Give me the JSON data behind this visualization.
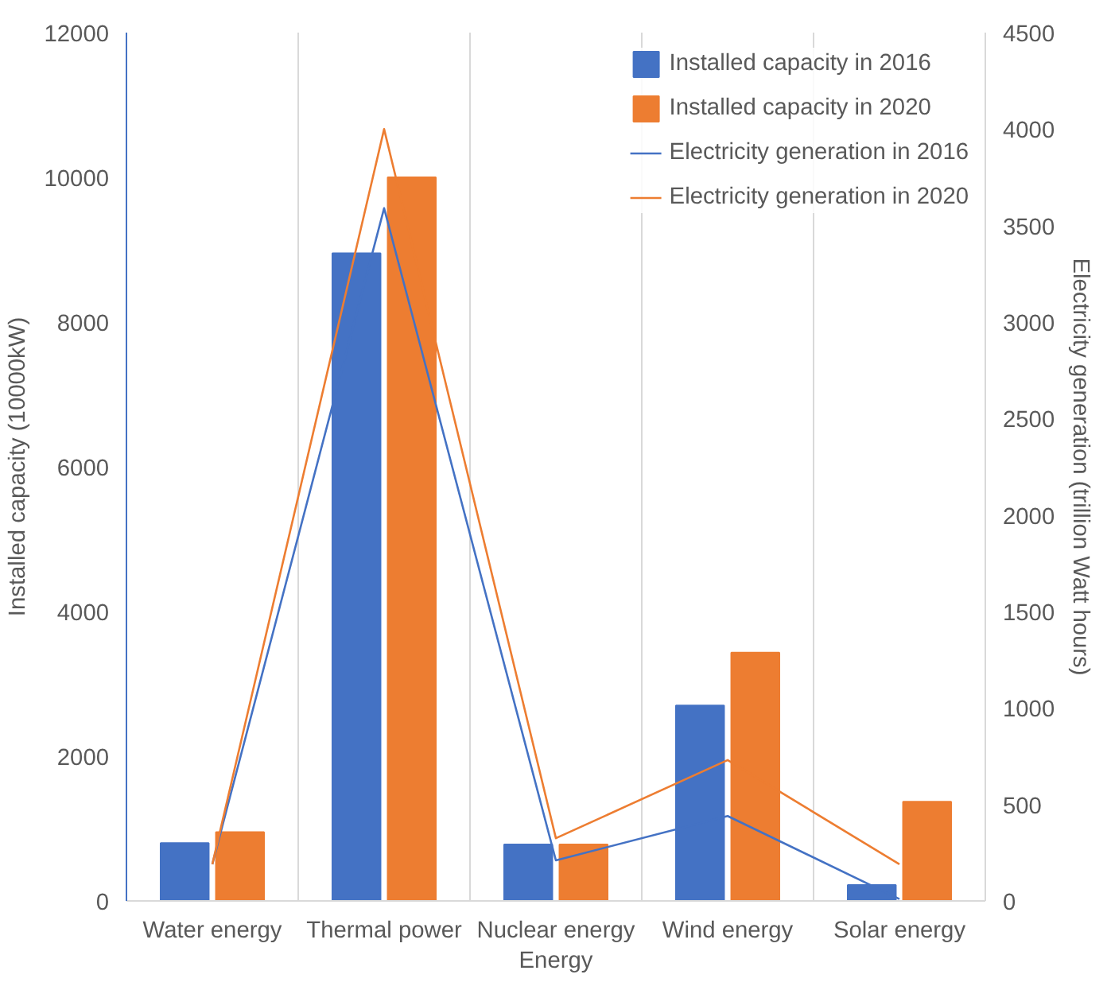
{
  "chart_data": {
    "type": "bar",
    "categories": [
      "Water energy",
      "Thermal power",
      "Nuclear energy Energy",
      "Wind energy",
      "Solar energy"
    ],
    "ylabel": "Installed capacity (10000kW)",
    "y2label": "Electricity generation (trillion Watt hours)",
    "ylim": [
      0,
      12000
    ],
    "yticks": [
      0,
      2000,
      4000,
      6000,
      8000,
      10000,
      12000
    ],
    "y2lim": [
      0,
      4500
    ],
    "y2ticks": [
      0,
      500,
      1000,
      1500,
      2000,
      2500,
      3000,
      3500,
      4000,
      4500
    ],
    "grid": "x",
    "legend": "top right",
    "series": [
      {
        "name": "Installed capacity in 2016",
        "color": "#4472c4",
        "values": [
          800,
          8950,
          780,
          2700,
          220
        ]
      },
      {
        "name": "Installed capacity in 2020",
        "color": "#ed7d31",
        "values": [
          950,
          10000,
          780,
          3430,
          1370
        ]
      },
      {
        "name": "Electricity generation in 2016",
        "type": "line",
        "axis": "y2",
        "color": "#4472c4",
        "values": [
          190,
          3590,
          210,
          440,
          10
        ]
      },
      {
        "name": "Electricity generation in 2020",
        "type": "line",
        "axis": "y2",
        "color": "#ed7d31",
        "values": [
          190,
          4000,
          325,
          730,
          190
        ]
      }
    ]
  }
}
